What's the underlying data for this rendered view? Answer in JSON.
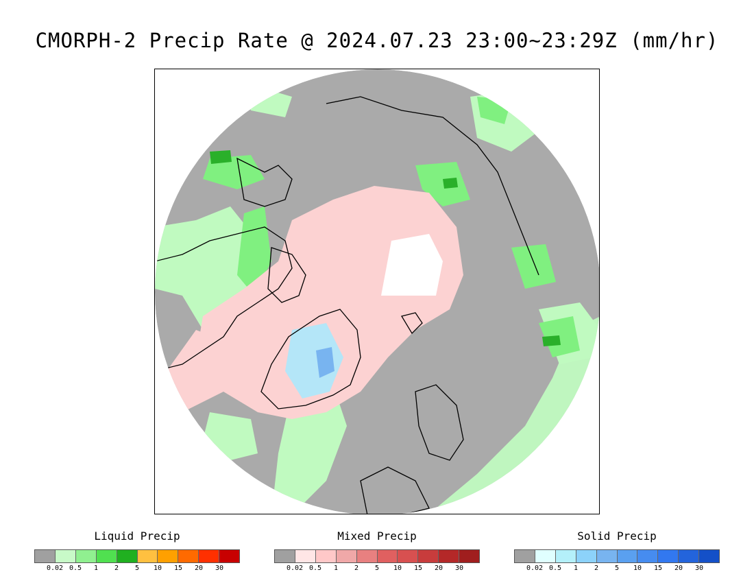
{
  "title": "CMORPH-2 Precip Rate @ 2024.07.23 23:00~23:29Z (mm/hr)",
  "map": {
    "projection": "north-polar-stereographic",
    "colors": {
      "background": "#aaaaaa",
      "no_data": "#ffffff",
      "coast": "#000000",
      "light_green": "#c0fac0",
      "green": "#80f080",
      "dark_green": "#2ab02a",
      "light_pink": "#fcd2d2",
      "blue_light": "#b4e6f8",
      "blue": "#78b4f0"
    }
  },
  "legends": [
    {
      "title": "Liquid Precip",
      "colors": [
        "#a0a0a0",
        "#c8fac8",
        "#90f090",
        "#50e050",
        "#20b020",
        "#ffc040",
        "#ffa000",
        "#ff6a00",
        "#ff3000",
        "#c80000"
      ],
      "ticks": [
        "0.02",
        "0.5",
        "1",
        "2",
        "5",
        "10",
        "15",
        "20",
        "30"
      ]
    },
    {
      "title": "Mixed Precip",
      "colors": [
        "#a0a0a0",
        "#ffe6e6",
        "#ffc8c8",
        "#f0a8a8",
        "#e88080",
        "#e06060",
        "#d85050",
        "#c83c3c",
        "#b42828",
        "#a01e1e"
      ],
      "ticks": [
        "0.02",
        "0.5",
        "1",
        "2",
        "5",
        "10",
        "15",
        "20",
        "30"
      ]
    },
    {
      "title": "Solid Precip",
      "colors": [
        "#a0a0a0",
        "#e0ffff",
        "#b4f0fa",
        "#8cd2fa",
        "#78b4f0",
        "#5aa0f0",
        "#468cf0",
        "#3278f0",
        "#2364dc",
        "#1450c8"
      ],
      "ticks": [
        "0.02",
        "0.5",
        "1",
        "2",
        "5",
        "10",
        "15",
        "20",
        "30"
      ]
    }
  ]
}
